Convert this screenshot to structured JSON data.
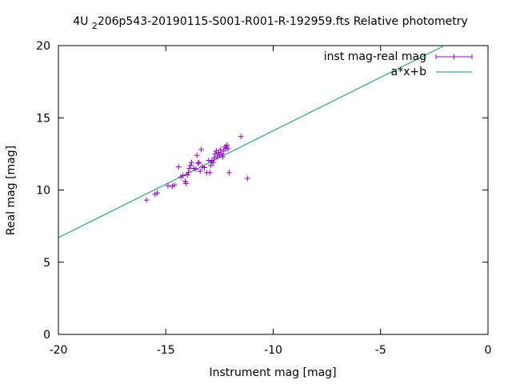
{
  "chart_data": {
    "type": "scatter",
    "title": {
      "before": "4U ",
      "subscript": "2",
      "after": "206p543-20190115-S001-R001-R-192959.fts Relative photometry"
    },
    "xlabel": "Instrument mag [mag]",
    "ylabel": "Real mag [mag]",
    "xlim": [
      -20,
      0
    ],
    "ylim": [
      0,
      20
    ],
    "xticks": [
      -20,
      -15,
      -10,
      -5,
      0
    ],
    "yticks": [
      0,
      5,
      10,
      15,
      20
    ],
    "xtick_labels": [
      "-20",
      "-15",
      "-10",
      "-5",
      "0"
    ],
    "ytick_labels": [
      "0",
      "5",
      "10",
      "15",
      "20"
    ],
    "legend_position": "top-right",
    "series": [
      {
        "name": "inst mag-real mag",
        "kind": "points-with-errorbars",
        "color": "#9400d3",
        "x": [
          -15.9,
          -15.5,
          -15.4,
          -14.9,
          -14.7,
          -14.6,
          -14.4,
          -14.3,
          -14.2,
          -14.1,
          -14.05,
          -14.0,
          -13.95,
          -13.9,
          -13.85,
          -13.8,
          -13.7,
          -13.6,
          -13.55,
          -13.5,
          -13.45,
          -13.4,
          -13.35,
          -13.3,
          -13.2,
          -13.1,
          -13.0,
          -12.95,
          -12.9,
          -12.85,
          -12.8,
          -12.75,
          -12.7,
          -12.65,
          -12.6,
          -12.55,
          -12.5,
          -12.45,
          -12.4,
          -12.35,
          -12.3,
          -12.25,
          -12.2,
          -12.15,
          -12.1,
          -12.05,
          -11.5,
          -11.2
        ],
        "y": [
          9.3,
          9.7,
          9.8,
          10.3,
          10.25,
          10.35,
          11.6,
          10.9,
          11.0,
          10.6,
          10.45,
          11.05,
          11.2,
          11.5,
          11.7,
          11.9,
          11.5,
          11.45,
          12.4,
          11.85,
          11.9,
          11.3,
          12.8,
          11.6,
          11.55,
          11.2,
          12.05,
          11.2,
          11.7,
          12.0,
          11.9,
          12.2,
          12.5,
          12.7,
          12.3,
          12.6,
          12.4,
          12.8,
          12.5,
          12.3,
          12.7,
          13.0,
          12.9,
          13.1,
          12.85,
          11.2,
          13.7,
          10.8
        ]
      },
      {
        "name": "a*x+b",
        "kind": "line",
        "color": "#009e73",
        "slope": 0.74,
        "intercept": 21.5
      }
    ]
  }
}
